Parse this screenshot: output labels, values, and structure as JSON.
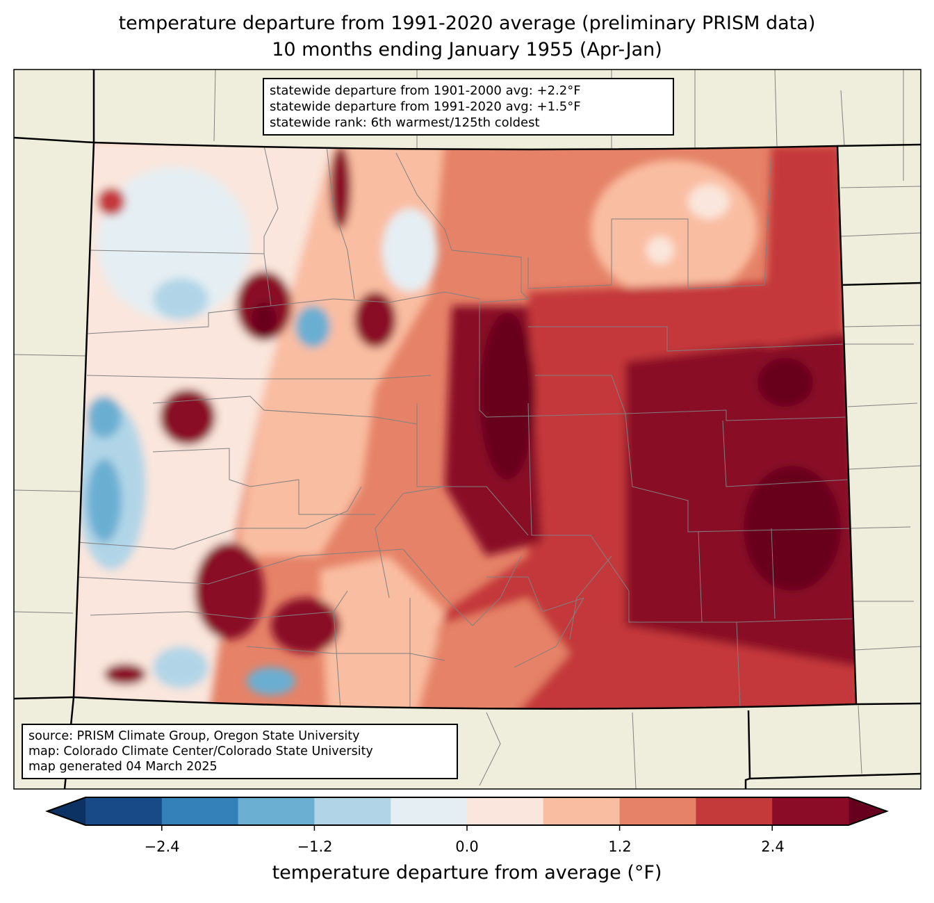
{
  "title": {
    "line1": "temperature departure from 1991-2020 average (preliminary PRISM data)",
    "line2": "10 months ending January 1955 (Apr-Jan)"
  },
  "stats_box": {
    "line1": "statewide departure from 1901-2000 avg: +2.2°F",
    "line2": "statewide departure from 1991-2020 avg: +1.5°F",
    "line3": "statewide rank: 6th warmest/125th coldest"
  },
  "source_box": {
    "line1": "source: PRISM Climate Group, Oregon State University",
    "line2": "map: Colorado Climate Center/Colorado State University",
    "line3": "map generated 04 March 2025"
  },
  "colorbar": {
    "label": "temperature departure from average (°F)",
    "ticks": [
      "−2.4",
      "−1.2",
      "0.0",
      "1.2",
      "2.4"
    ],
    "levels": [
      -3.0,
      -2.4,
      -1.8,
      -1.2,
      -0.6,
      0.0,
      0.6,
      1.2,
      1.8,
      2.4,
      3.0
    ],
    "colors": [
      "#174a86",
      "#3480b9",
      "#6bafd2",
      "#b1d5e7",
      "#e5eef3",
      "#fae6dc",
      "#f9bda1",
      "#e58267",
      "#c4393a",
      "#8a0c26"
    ],
    "under_color": "#0b3263",
    "over_color": "#67001f"
  },
  "map_colors": {
    "land": "#efeddb",
    "county_line": "#808080",
    "state_line": "#000000"
  }
}
